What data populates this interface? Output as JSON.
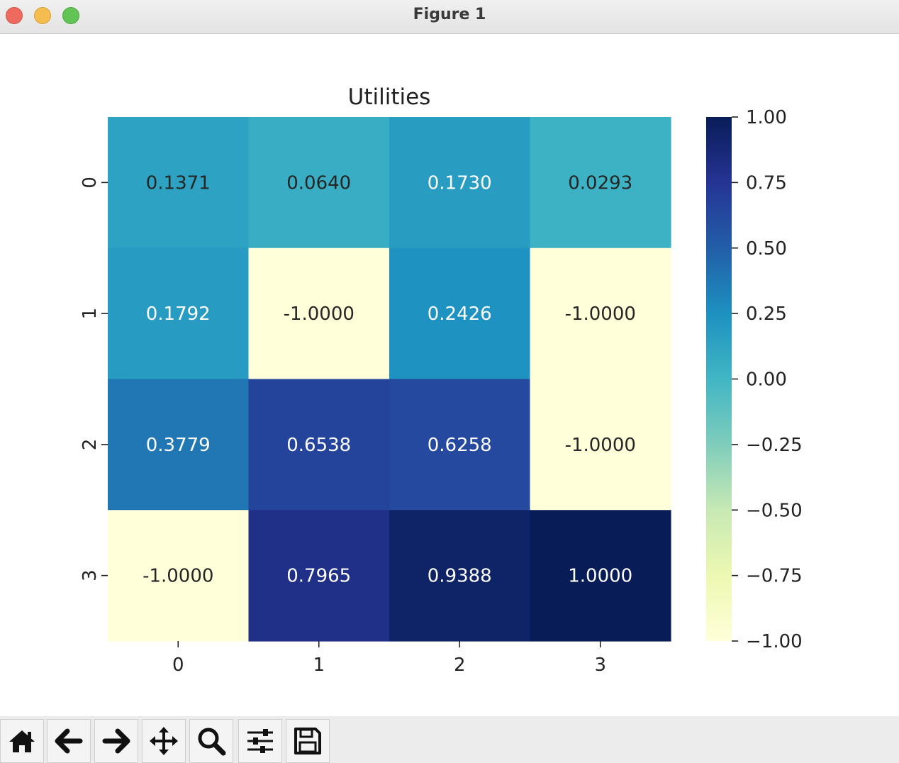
{
  "window": {
    "title": "Figure 1"
  },
  "toolbar": {
    "buttons": [
      {
        "name": "home-icon"
      },
      {
        "name": "back-arrow-icon"
      },
      {
        "name": "forward-arrow-icon"
      },
      {
        "name": "pan-icon"
      },
      {
        "name": "zoom-icon"
      },
      {
        "name": "configure-subplots-icon"
      },
      {
        "name": "save-icon"
      }
    ]
  },
  "chart_data": {
    "type": "heatmap",
    "title": "Utilities",
    "xlabel": "",
    "ylabel": "",
    "x_categories": [
      "0",
      "1",
      "2",
      "3"
    ],
    "y_categories": [
      "0",
      "1",
      "2",
      "3"
    ],
    "values": [
      [
        0.1371,
        0.064,
        0.173,
        0.0293
      ],
      [
        0.1792,
        -1.0,
        0.2426,
        -1.0
      ],
      [
        0.3779,
        0.6538,
        0.6258,
        -1.0
      ],
      [
        -1.0,
        0.7965,
        0.9388,
        1.0
      ]
    ],
    "annotation_format": "4 decimals",
    "colormap": "YlGnBu",
    "vmin": -1.0,
    "vmax": 1.0,
    "colorbar": {
      "ticks": [
        1.0,
        0.75,
        0.5,
        0.25,
        0.0,
        -0.25,
        -0.5,
        -0.75,
        -1.0
      ],
      "tick_labels": [
        "1.00",
        "0.75",
        "0.50",
        "0.25",
        "0.00",
        "−0.25",
        "−0.50",
        "−0.75",
        "−1.00"
      ],
      "placement": "right"
    },
    "grid": false
  }
}
